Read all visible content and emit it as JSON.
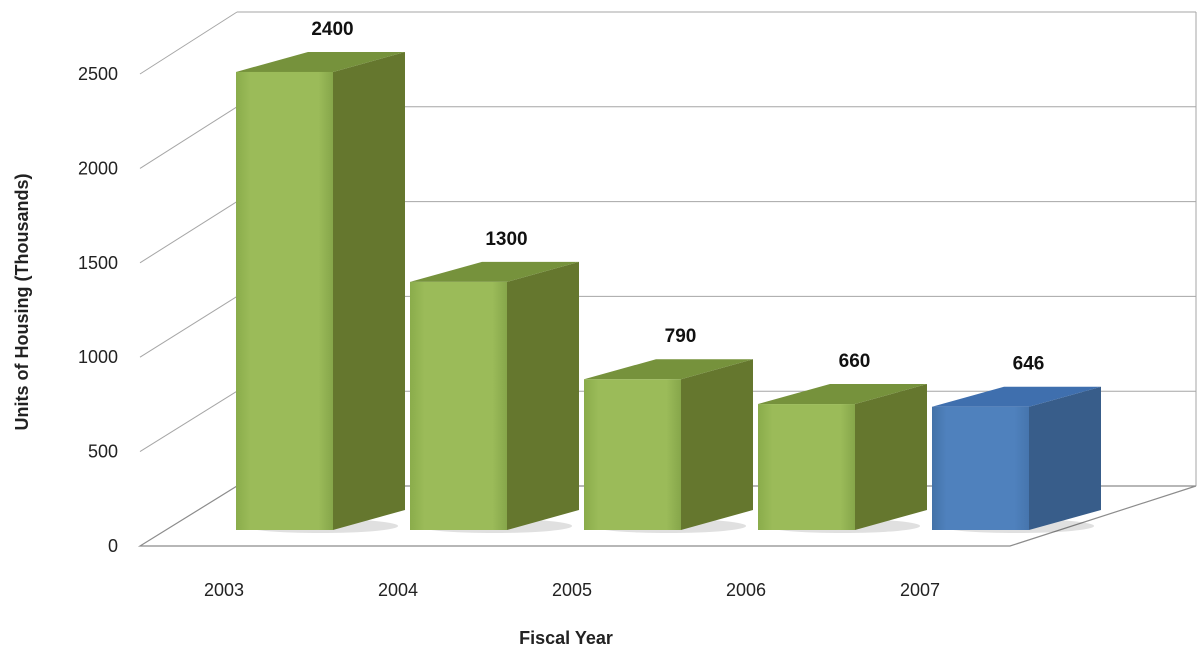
{
  "chart_data": {
    "type": "bar",
    "style": "3d-column",
    "title": "",
    "xlabel": "Fiscal Year",
    "ylabel": "Units of Housing (Thousands)",
    "categories": [
      "2003",
      "2004",
      "2005",
      "2006",
      "2007"
    ],
    "values": [
      2400,
      1300,
      790,
      660,
      646
    ],
    "data_labels": [
      "2400",
      "1300",
      "790",
      "660",
      "646"
    ],
    "yticks": [
      "0",
      "500",
      "1000",
      "1500",
      "2000",
      "2500"
    ],
    "ylim": [
      0,
      2500
    ],
    "grid": true,
    "legend": "none",
    "colors": {
      "default_bar": "#9bbb59",
      "highlight_bar": "#4f81bd",
      "gridline": "#a6a6a6"
    },
    "highlighted_category": "2007"
  }
}
